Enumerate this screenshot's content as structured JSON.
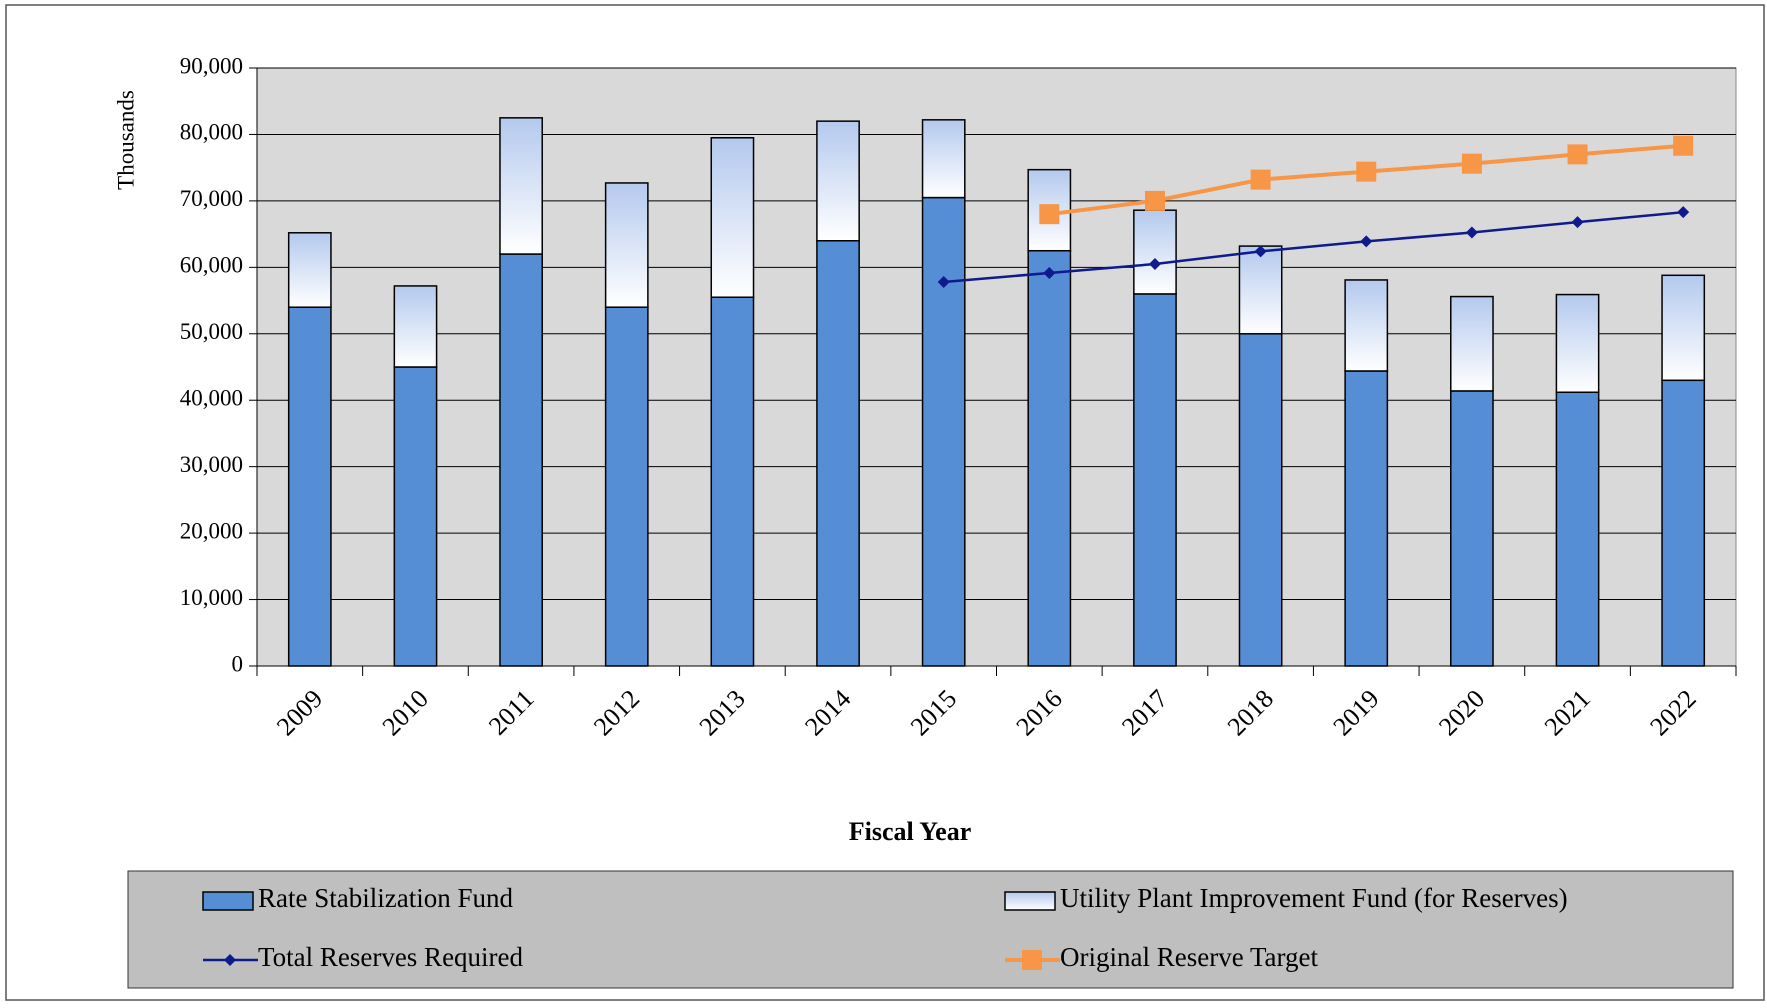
{
  "chart_data": {
    "type": "bar",
    "stacked": true,
    "y_label": "Thousands",
    "x_label": "Fiscal Year",
    "categories": [
      "2009",
      "2010",
      "2011",
      "2012",
      "2013",
      "2014",
      "2015",
      "2016",
      "2017",
      "2018",
      "2019",
      "2020",
      "2021",
      "2022"
    ],
    "series": [
      {
        "name": "Rate Stabilization Fund",
        "type": "bar",
        "color": "#558ed5",
        "values": [
          54000,
          45000,
          62000,
          54000,
          55500,
          64000,
          70500,
          62500,
          56000,
          50000,
          44400,
          41400,
          41200,
          43000
        ]
      },
      {
        "name": "Utility Plant Improvement Fund (for Reserves)",
        "type": "bar",
        "color": "#b4c9ee",
        "values": [
          11200,
          12200,
          20500,
          18700,
          24000,
          18000,
          11700,
          12200,
          12600,
          13200,
          13700,
          14200,
          14700,
          15800
        ]
      },
      {
        "name": "Total Reserves Required",
        "type": "line",
        "color": "#0f1a8c",
        "marker": "diamond",
        "values": [
          null,
          null,
          null,
          null,
          null,
          null,
          57800,
          59150,
          60500,
          62400,
          63900,
          65250,
          66800,
          68300
        ]
      },
      {
        "name": "Original Reserve Target",
        "type": "line",
        "color": "#f79646",
        "marker": "square",
        "values": [
          null,
          null,
          null,
          null,
          null,
          null,
          null,
          68000,
          70000,
          73200,
          74400,
          75600,
          77000,
          78300
        ]
      }
    ],
    "ylim": [
      0,
      90000
    ],
    "yticks": [
      {
        "value": 0,
        "label": "0"
      },
      {
        "value": 10000,
        "label": "10,000"
      },
      {
        "value": 20000,
        "label": "20,000"
      },
      {
        "value": 30000,
        "label": "30,000"
      },
      {
        "value": 40000,
        "label": "40,000"
      },
      {
        "value": 50000,
        "label": "50,000"
      },
      {
        "value": 60000,
        "label": "60,000"
      },
      {
        "value": 70000,
        "label": "70,000"
      },
      {
        "value": 80000,
        "label": "80,000"
      },
      {
        "value": 90000,
        "label": "90,000"
      }
    ],
    "grid": true,
    "legend": "bottom"
  }
}
